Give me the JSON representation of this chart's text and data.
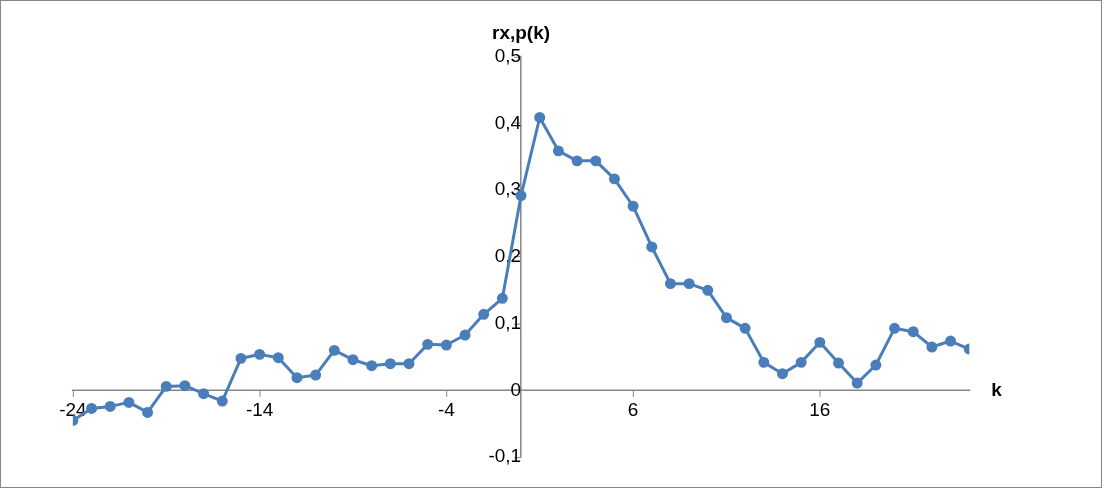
{
  "chart_data": {
    "type": "line",
    "xlabel": "k",
    "ylabel": "rx,p(k)",
    "x": [
      -24,
      -23,
      -22,
      -21,
      -20,
      -19,
      -18,
      -17,
      -16,
      -15,
      -14,
      -13,
      -12,
      -11,
      -10,
      -9,
      -8,
      -7,
      -6,
      -5,
      -4,
      -3,
      -2,
      -1,
      0,
      1,
      2,
      3,
      4,
      5,
      6,
      7,
      8,
      9,
      10,
      11,
      12,
      13,
      14,
      15,
      16,
      17,
      18,
      19,
      20,
      21,
      22,
      23,
      24
    ],
    "series": [
      {
        "color": "#4a7ebb",
        "values": [
          -0.045,
          -0.027,
          -0.024,
          -0.018,
          -0.033,
          0.006,
          0.007,
          -0.005,
          -0.016,
          0.048,
          0.054,
          0.049,
          0.019,
          0.023,
          0.06,
          0.046,
          0.037,
          0.04,
          0.04,
          0.069,
          0.068,
          0.083,
          0.114,
          0.138,
          0.292,
          0.409,
          0.359,
          0.344,
          0.344,
          0.317,
          0.276,
          0.215,
          0.16,
          0.16,
          0.15,
          0.109,
          0.093,
          0.042,
          0.025,
          0.042,
          0.072,
          0.041,
          0.011,
          0.038,
          0.093,
          0.088,
          0.065,
          0.074,
          0.062
        ]
      }
    ],
    "xlim": [
      -24,
      24
    ],
    "xticks": [
      -24,
      -14,
      -4,
      6,
      16
    ],
    "ylim": [
      -0.1,
      0.5
    ],
    "yticks": [
      {
        "value": -0.1,
        "label": "-0,1"
      },
      0,
      {
        "value": 0.1,
        "label": "0,1"
      },
      {
        "value": 0.2,
        "label": "0,2"
      },
      {
        "value": 0.3,
        "label": "0,3"
      },
      {
        "value": 0.4,
        "label": "0,4"
      },
      {
        "value": 0.5,
        "label": "0,5"
      }
    ],
    "grid": false,
    "legend": false,
    "marker": "circle",
    "line_style": "solid"
  }
}
